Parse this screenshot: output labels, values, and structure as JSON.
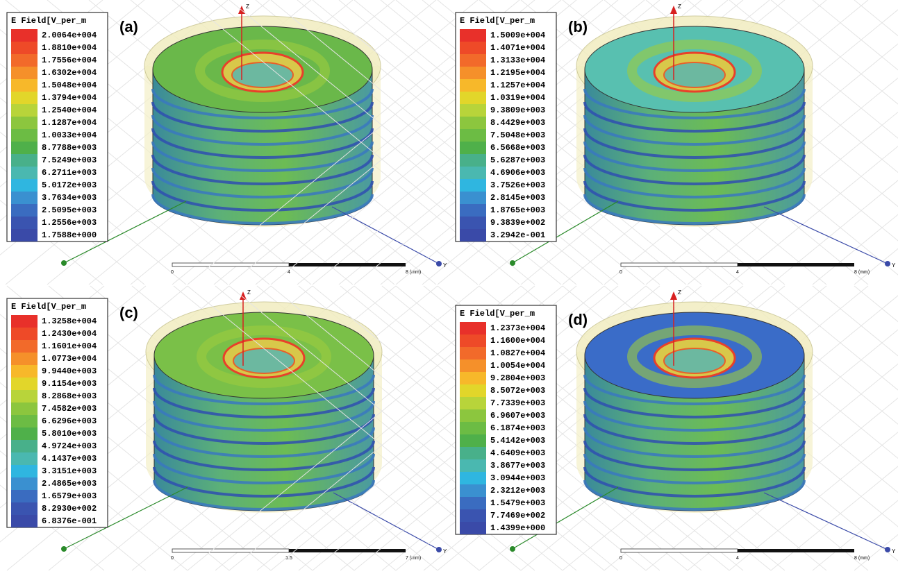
{
  "panels": [
    {
      "label": "(a)",
      "legend_title": "E Field[V_per_m",
      "legend": [
        "2.0064e+004",
        "1.8810e+004",
        "1.7556e+004",
        "1.6302e+004",
        "1.5048e+004",
        "1.3794e+004",
        "1.2540e+004",
        "1.1287e+004",
        "1.0033e+004",
        "8.7788e+003",
        "7.5249e+003",
        "6.2711e+003",
        "5.0172e+003",
        "3.7634e+003",
        "2.5095e+003",
        "1.2556e+003",
        "1.7588e+000"
      ],
      "scale": [
        "0",
        "4",
        "8 (mm)"
      ],
      "z_axis": "Z",
      "y_axis": "Y"
    },
    {
      "label": "(b)",
      "legend_title": "E Field[V_per_m",
      "legend": [
        "1.5009e+004",
        "1.4071e+004",
        "1.3133e+004",
        "1.2195e+004",
        "1.1257e+004",
        "1.0319e+004",
        "9.3809e+003",
        "8.4429e+003",
        "7.5048e+003",
        "6.5668e+003",
        "5.6287e+003",
        "4.6906e+003",
        "3.7526e+003",
        "2.8145e+003",
        "1.8765e+003",
        "9.3839e+002",
        "3.2942e-001"
      ],
      "scale": [
        "0",
        "4",
        "8 (mm)"
      ],
      "z_axis": "Z",
      "y_axis": "Y"
    },
    {
      "label": "(c)",
      "legend_title": "E Field[V_per_m",
      "legend": [
        "1.3258e+004",
        "1.2430e+004",
        "1.1601e+004",
        "1.0773e+004",
        "9.9440e+003",
        "9.1154e+003",
        "8.2868e+003",
        "7.4582e+003",
        "6.6296e+003",
        "5.8010e+003",
        "4.9724e+003",
        "4.1437e+003",
        "3.3151e+003",
        "2.4865e+003",
        "1.6579e+003",
        "8.2930e+002",
        "6.8376e-001"
      ],
      "scale": [
        "0",
        "3.5",
        "7 (mm)"
      ],
      "z_axis": "Z",
      "y_axis": "Y"
    },
    {
      "label": "(d)",
      "legend_title": "E Field[V_per_m",
      "legend": [
        "1.2373e+004",
        "1.1600e+004",
        "1.0827e+004",
        "1.0054e+004",
        "9.2804e+003",
        "8.5072e+003",
        "7.7339e+003",
        "6.9607e+003",
        "6.1874e+003",
        "5.4142e+003",
        "4.6409e+003",
        "3.8677e+003",
        "3.0944e+003",
        "2.3212e+003",
        "1.5479e+003",
        "7.7469e+002",
        "1.4399e+000"
      ],
      "scale": [
        "0",
        "4",
        "8 (mm)"
      ],
      "z_axis": "Z",
      "y_axis": "Y"
    }
  ]
}
